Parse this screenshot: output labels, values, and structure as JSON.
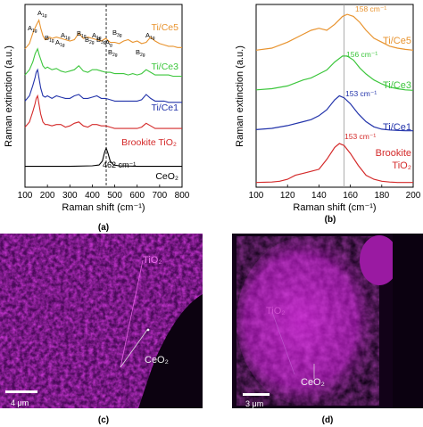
{
  "chart_data": [
    {
      "panel": "(a)",
      "type": "line",
      "xlabel": "Raman shift (cm⁻¹)",
      "ylabel": "Raman extinction (a.u.)",
      "xlim": [
        100,
        800
      ],
      "xticks": [
        "100",
        "200",
        "300",
        "400",
        "500",
        "600",
        "700",
        "800"
      ],
      "dashed_line_x": 462,
      "peak_label": "462 cm⁻¹",
      "series": [
        {
          "name": "Ti/Ce5",
          "color": "#e8932e",
          "offset": 5,
          "x": [
            100,
            120,
            135,
            145,
            150,
            156,
            162,
            170,
            180,
            190,
            200,
            210,
            220,
            240,
            260,
            280,
            300,
            320,
            340,
            360,
            380,
            400,
            420,
            440,
            460,
            480,
            500,
            520,
            540,
            560,
            580,
            600,
            620,
            640,
            660,
            680,
            700,
            720,
            740,
            760,
            780,
            800
          ],
          "y": [
            0.1,
            0.3,
            0.7,
            0.9,
            1.0,
            1.1,
            1.2,
            0.9,
            0.6,
            0.45,
            0.5,
            0.55,
            0.5,
            0.55,
            0.5,
            0.45,
            0.4,
            0.45,
            0.7,
            0.5,
            0.55,
            0.5,
            0.45,
            0.4,
            0.5,
            0.35,
            0.35,
            0.3,
            0.4,
            0.45,
            0.35,
            0.4,
            0.3,
            0.35,
            0.55,
            0.4,
            0.3,
            0.25,
            0.2,
            0.2,
            0.15,
            0.15
          ]
        },
        {
          "name": "Ti/Ce3",
          "color": "#3cc63c",
          "offset": 4,
          "x": [
            100,
            120,
            135,
            145,
            150,
            156,
            162,
            170,
            180,
            190,
            200,
            220,
            240,
            260,
            280,
            300,
            320,
            340,
            360,
            380,
            400,
            420,
            440,
            460,
            480,
            500,
            520,
            540,
            560,
            580,
            600,
            620,
            640,
            660,
            680,
            700,
            720,
            740,
            760,
            780,
            800
          ],
          "y": [
            0.1,
            0.3,
            0.6,
            0.9,
            1.0,
            1.1,
            0.9,
            0.7,
            0.45,
            0.35,
            0.4,
            0.3,
            0.35,
            0.25,
            0.2,
            0.25,
            0.3,
            0.45,
            0.25,
            0.2,
            0.3,
            0.3,
            0.25,
            0.2,
            0.2,
            0.15,
            0.15,
            0.15,
            0.1,
            0.15,
            0.1,
            0.15,
            0.3,
            0.2,
            0.1,
            0.1,
            0.1,
            0.1,
            0.05,
            0.05,
            0.05
          ]
        },
        {
          "name": "Ti/Ce1",
          "color": "#2233aa",
          "offset": 3,
          "x": [
            100,
            120,
            135,
            145,
            150,
            156,
            162,
            170,
            180,
            190,
            200,
            220,
            240,
            260,
            280,
            300,
            320,
            340,
            360,
            380,
            400,
            420,
            440,
            460,
            480,
            500,
            520,
            540,
            560,
            580,
            600,
            620,
            640,
            660,
            680,
            700,
            720,
            740,
            760,
            780,
            800
          ],
          "y": [
            0.1,
            0.3,
            0.7,
            1.0,
            1.2,
            1.3,
            1.0,
            0.6,
            0.3,
            0.25,
            0.3,
            0.2,
            0.3,
            0.25,
            0.2,
            0.2,
            0.3,
            0.35,
            0.2,
            0.2,
            0.25,
            0.3,
            0.2,
            0.2,
            0.15,
            0.1,
            0.1,
            0.1,
            0.1,
            0.1,
            0.1,
            0.15,
            0.35,
            0.2,
            0.1,
            0.1,
            0.1,
            0.05,
            0.05,
            0.05,
            0.05
          ]
        },
        {
          "name": "Brookite TiO₂",
          "color": "#d42a2a",
          "offset": 2,
          "x": [
            100,
            120,
            135,
            145,
            150,
            156,
            162,
            170,
            180,
            190,
            200,
            220,
            240,
            260,
            280,
            300,
            320,
            340,
            360,
            380,
            400,
            420,
            440,
            460,
            480,
            500,
            520,
            540,
            560,
            580,
            600,
            620,
            640,
            660,
            680,
            700,
            720,
            740,
            760,
            780,
            800
          ],
          "y": [
            0.1,
            0.3,
            0.7,
            1.0,
            1.2,
            1.3,
            1.0,
            0.6,
            0.3,
            0.2,
            0.2,
            0.15,
            0.2,
            0.2,
            0.1,
            0.15,
            0.25,
            0.3,
            0.15,
            0.1,
            0.2,
            0.2,
            0.15,
            0.15,
            0.1,
            0.05,
            0.05,
            0.05,
            0.05,
            0.05,
            0.05,
            0.1,
            0.25,
            0.15,
            0.05,
            0.05,
            0.05,
            0.05,
            0.05,
            0.05,
            0.05
          ]
        },
        {
          "name": "CeO₂",
          "color": "#000000",
          "offset": 0.6,
          "x": [
            100,
            200,
            300,
            400,
            430,
            445,
            455,
            462,
            470,
            480,
            495,
            520,
            600,
            700,
            800
          ],
          "y": [
            0,
            0,
            0,
            0.02,
            0.05,
            0.2,
            0.55,
            0.7,
            0.5,
            0.2,
            0.05,
            0.02,
            0,
            0,
            0
          ]
        }
      ],
      "labels": [
        "Ti/Ce5",
        "Ti/Ce3",
        "Ti/Ce1",
        "Brookite TiO₂",
        "CeO₂"
      ],
      "annotations": {
        "A1g_left": "A1g",
        "A1g_top": "A1g",
        "B1g": "B1g",
        "A1g_2": "A1g",
        "A1g_3": "A1g",
        "B1g_2": "B1g",
        "B2g": "B2g",
        "A1g_4": "A1g",
        "B3g": "B3g",
        "B3g_2": "B3g",
        "Ag": "Ag",
        "B2g_2": "B2g",
        "B2g_3": "B2g",
        "A1g_5": "A1g"
      }
    },
    {
      "panel": "(b)",
      "type": "line",
      "xlabel": "Raman shift (cm⁻¹)",
      "ylabel": "Raman extinction (a.u.)",
      "xlim": [
        100,
        200
      ],
      "xticks": [
        "100",
        "120",
        "140",
        "160",
        "180",
        "200"
      ],
      "vline_x": 156,
      "series": [
        {
          "name": "Ti/Ce5",
          "color": "#e8932e",
          "peak": "158 cm⁻¹",
          "offset": 3.3,
          "x": [
            100,
            110,
            120,
            130,
            135,
            140,
            145,
            150,
            155,
            158,
            162,
            166,
            170,
            175,
            180,
            185,
            190,
            195,
            200
          ],
          "y": [
            0.05,
            0.1,
            0.25,
            0.45,
            0.55,
            0.6,
            0.55,
            0.7,
            0.9,
            0.95,
            0.9,
            0.75,
            0.55,
            0.35,
            0.25,
            0.15,
            0.1,
            0.07,
            0.05
          ]
        },
        {
          "name": "Ti/Ce3",
          "color": "#3cc63c",
          "peak": "156 cm⁻¹",
          "offset": 2.3,
          "x": [
            100,
            110,
            120,
            130,
            135,
            140,
            145,
            150,
            155,
            158,
            162,
            166,
            170,
            175,
            180,
            185,
            190,
            195,
            200
          ],
          "y": [
            0.05,
            0.08,
            0.15,
            0.3,
            0.35,
            0.45,
            0.55,
            0.75,
            0.9,
            0.9,
            0.8,
            0.6,
            0.45,
            0.3,
            0.2,
            0.12,
            0.08,
            0.05,
            0.04
          ]
        },
        {
          "name": "Ti/Ce1",
          "color": "#2233aa",
          "peak": "153 cm⁻¹",
          "offset": 1.3,
          "x": [
            100,
            110,
            120,
            130,
            135,
            140,
            145,
            150,
            153,
            156,
            160,
            165,
            170,
            175,
            180,
            185,
            190,
            195,
            200
          ],
          "y": [
            0.05,
            0.08,
            0.15,
            0.25,
            0.3,
            0.4,
            0.55,
            0.8,
            0.9,
            0.85,
            0.7,
            0.45,
            0.25,
            0.12,
            0.06,
            0.04,
            0.03,
            0.02,
            0.02
          ]
        },
        {
          "name": "Brookite TiO₂",
          "color": "#d42a2a",
          "peak": "153 cm⁻¹",
          "offset": 0,
          "x": [
            100,
            110,
            115,
            120,
            125,
            130,
            135,
            140,
            145,
            150,
            153,
            156,
            160,
            165,
            170,
            175,
            180,
            185,
            190,
            195,
            200
          ],
          "y": [
            0.02,
            0.03,
            0.05,
            0.1,
            0.2,
            0.25,
            0.3,
            0.35,
            0.6,
            0.9,
            1.0,
            0.95,
            0.75,
            0.45,
            0.2,
            0.1,
            0.05,
            0.03,
            0.02,
            0.02,
            0.02
          ]
        }
      ],
      "labels": [
        "Ti/Ce5",
        "Ti/Ce3",
        "Ti/Ce1",
        "Brookite",
        "TiO₂"
      ]
    }
  ],
  "captions": {
    "a": "(a)",
    "b": "(b)",
    "c": "(c)",
    "d": "(d)"
  },
  "images": {
    "c": {
      "label_tio2": "TiO₂",
      "label_ceo2": "CeO₂",
      "scalebar": "4 μm"
    },
    "d": {
      "label_tio2": "TiO₂",
      "label_ceo2": "CeO₂",
      "scalebar": "3 μm"
    }
  },
  "colors": {
    "magenta": "#d020d0",
    "background_dark": "#120218"
  }
}
